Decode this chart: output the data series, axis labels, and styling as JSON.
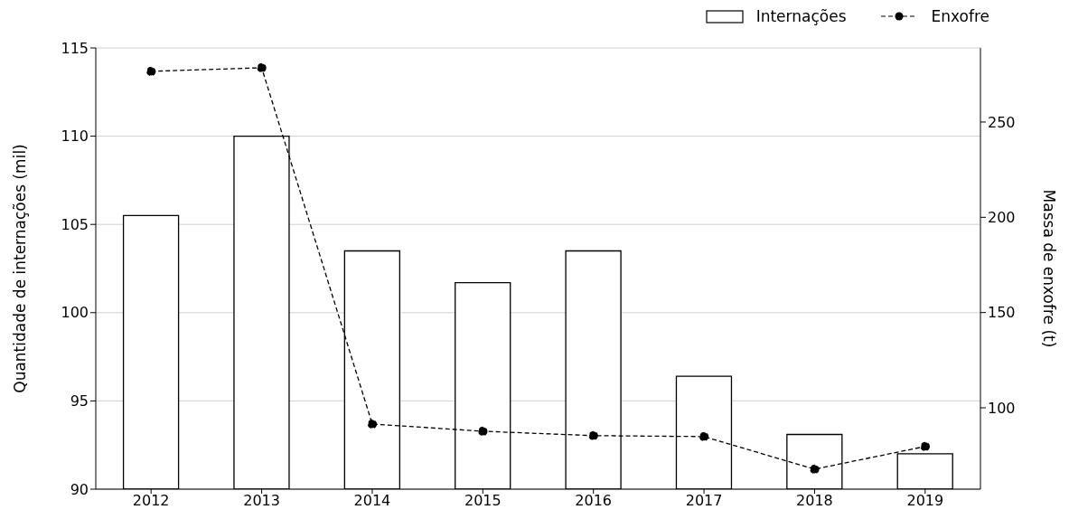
{
  "chart_data": {
    "type": "bar",
    "categories": [
      "2012",
      "2013",
      "2014",
      "2015",
      "2016",
      "2017",
      "2018",
      "2019"
    ],
    "series": [
      {
        "name": "Internações",
        "color": "#ffffff",
        "values": [
          105.5,
          110.0,
          103.5,
          101.7,
          103.5,
          96.4,
          93.1,
          92.0
        ]
      },
      {
        "name": "Enxofre",
        "type": "line",
        "axis": "y2",
        "color": "#000000",
        "marker": "circle",
        "line_style": "dashed",
        "values": [
          276.6,
          278.5,
          91.5,
          87.7,
          85.4,
          84.9,
          67.8,
          79.7
        ]
      }
    ],
    "ylabel": "Quantidade de internações (mil)",
    "y2label": "Massa de enxofre (t)",
    "ylim": [
      90,
      115
    ],
    "yticks": [
      90,
      95,
      100,
      105,
      110,
      115
    ],
    "y2lim": [
      57.3,
      288.9
    ],
    "y2ticks": [
      100,
      150,
      200,
      250
    ],
    "grid": "y",
    "legend": "top right"
  }
}
